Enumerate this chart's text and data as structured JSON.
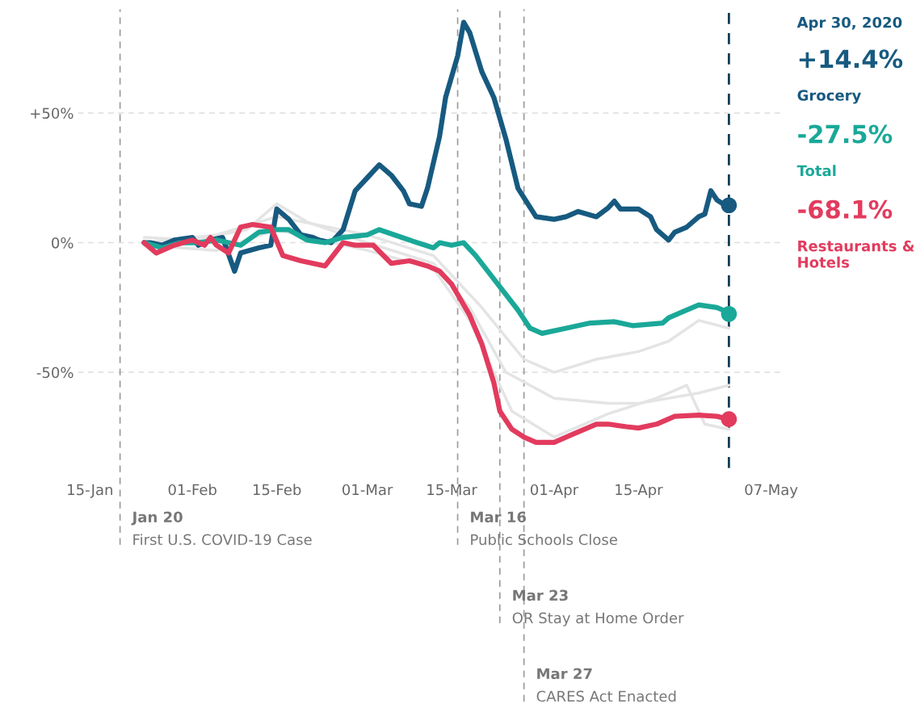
{
  "chart_data": {
    "type": "line",
    "xlim": [
      "2020-01-13",
      "2020-05-09"
    ],
    "xticks": [
      {
        "value": "2020-01-15",
        "label": "15-Jan"
      },
      {
        "value": "2020-02-01",
        "label": "01-Feb"
      },
      {
        "value": "2020-02-15",
        "label": "15-Feb"
      },
      {
        "value": "2020-03-01",
        "label": "01-Mar"
      },
      {
        "value": "2020-03-15",
        "label": "15-Mar"
      },
      {
        "value": "2020-04-01",
        "label": "01-Apr"
      },
      {
        "value": "2020-04-15",
        "label": "15-Apr"
      },
      {
        "value": "2020-05-07",
        "label": "07-May"
      }
    ],
    "ylim": [
      -87,
      90
    ],
    "yticks": [
      {
        "value": 50,
        "label": "+50%"
      },
      {
        "value": 0,
        "label": "0%"
      },
      {
        "value": -50,
        "label": "-50%"
      }
    ],
    "grid": "y",
    "annotations": [
      "Apr 30, 2020",
      "+14.4%",
      "-27.5%",
      "-68.1%"
    ],
    "ref_lines": [
      {
        "axis": "x",
        "value": "2020-01-20",
        "label": "Jan 20\nFirst U.S. COVID-19 Case",
        "color": "#9a9a9a",
        "line_style": "dashed"
      },
      {
        "axis": "x",
        "value": "2020-03-16",
        "label": "Mar 16\nPublic Schools Close",
        "color": "#9a9a9a",
        "line_style": "dashed"
      },
      {
        "axis": "x",
        "value": "2020-03-23",
        "label": "Mar 23\nOR Stay at Home Order",
        "color": "#9a9a9a",
        "line_style": "dashed"
      },
      {
        "axis": "x",
        "value": "2020-03-27",
        "label": "Mar 27\nCARES Act Enacted",
        "color": "#9a9a9a",
        "line_style": "dashed"
      },
      {
        "axis": "x",
        "value": "2020-04-30",
        "color": "#143d55",
        "line_style": "dashed"
      }
    ],
    "series": [
      {
        "color": "#e4e4e4",
        "x": [
          "2020-01-24",
          "2020-02-05",
          "2020-02-15",
          "2020-03-01",
          "2020-03-12",
          "2020-03-20",
          "2020-03-27",
          "2020-04-01",
          "2020-04-08",
          "2020-04-15",
          "2020-04-20",
          "2020-04-25",
          "2020-04-30"
        ],
        "values": [
          0,
          3,
          10,
          3,
          -5,
          -25,
          -45,
          -50,
          -45,
          -42,
          -38,
          -30,
          -33
        ]
      },
      {
        "color": "#e4e4e4",
        "x": [
          "2020-01-24",
          "2020-02-01",
          "2020-02-10",
          "2020-02-15",
          "2020-02-20",
          "2020-03-01",
          "2020-03-12",
          "2020-03-18",
          "2020-03-24",
          "2020-04-01",
          "2020-04-10",
          "2020-04-15",
          "2020-04-25",
          "2020-04-30"
        ],
        "values": [
          2,
          1,
          5,
          15,
          8,
          0,
          -8,
          -25,
          -50,
          -60,
          -62,
          -62,
          -58,
          -55
        ]
      },
      {
        "color": "#e4e4e4",
        "x": [
          "2020-01-24",
          "2020-02-05",
          "2020-02-15",
          "2020-03-01",
          "2020-03-12",
          "2020-03-18",
          "2020-03-25",
          "2020-04-01",
          "2020-04-10",
          "2020-04-18",
          "2020-04-23",
          "2020-04-26",
          "2020-04-30"
        ],
        "values": [
          -1,
          -3,
          5,
          -3,
          -10,
          -30,
          -65,
          -75,
          -66,
          -60,
          -55,
          -70,
          -72
        ]
      },
      {
        "name": "Grocery",
        "color": "#175a80",
        "x": [
          "2020-01-24",
          "2020-01-25",
          "2020-01-27",
          "2020-01-29",
          "2020-02-01",
          "2020-02-02",
          "2020-02-04",
          "2020-02-06",
          "2020-02-08",
          "2020-02-09",
          "2020-02-12",
          "2020-02-14",
          "2020-02-15",
          "2020-02-17",
          "2020-02-19",
          "2020-02-21",
          "2020-02-22",
          "2020-02-24",
          "2020-02-26",
          "2020-02-28",
          "2020-03-01",
          "2020-03-03",
          "2020-03-05",
          "2020-03-07",
          "2020-03-08",
          "2020-03-10",
          "2020-03-11",
          "2020-03-13",
          "2020-03-14",
          "2020-03-16",
          "2020-03-17",
          "2020-03-18",
          "2020-03-20",
          "2020-03-22",
          "2020-03-24",
          "2020-03-26",
          "2020-03-29",
          "2020-04-01",
          "2020-04-03",
          "2020-04-05",
          "2020-04-08",
          "2020-04-10",
          "2020-04-11",
          "2020-04-12",
          "2020-04-15",
          "2020-04-17",
          "2020-04-18",
          "2020-04-20",
          "2020-04-21",
          "2020-04-23",
          "2020-04-25",
          "2020-04-26",
          "2020-04-27",
          "2020-04-28",
          "2020-04-29",
          "2020-04-30"
        ],
        "values": [
          0,
          0,
          -1,
          1,
          2,
          -1,
          1,
          2,
          -11,
          -4,
          -2,
          -1,
          13,
          9,
          3,
          2,
          1,
          0,
          5,
          20,
          25,
          30,
          26,
          20,
          15,
          14,
          21,
          41,
          56,
          72,
          85,
          81,
          66,
          56,
          40,
          21,
          10,
          9,
          10,
          12,
          10,
          13.5,
          16,
          13,
          13,
          10,
          5,
          1,
          4,
          6,
          10,
          11,
          20,
          16.5,
          15,
          14.4
        ]
      },
      {
        "name": "Total",
        "color": "#1aa898",
        "x": [
          "2020-01-24",
          "2020-01-27",
          "2020-01-30",
          "2020-02-02",
          "2020-02-05",
          "2020-02-09",
          "2020-02-12",
          "2020-02-15",
          "2020-02-17",
          "2020-02-20",
          "2020-02-23",
          "2020-02-26",
          "2020-03-01",
          "2020-03-03",
          "2020-03-08",
          "2020-03-12",
          "2020-03-13",
          "2020-03-15",
          "2020-03-17",
          "2020-03-19",
          "2020-03-21",
          "2020-03-23",
          "2020-03-26",
          "2020-03-28",
          "2020-03-30",
          "2020-04-03",
          "2020-04-07",
          "2020-04-11",
          "2020-04-14",
          "2020-04-19",
          "2020-04-20",
          "2020-04-22",
          "2020-04-25",
          "2020-04-28",
          "2020-04-29",
          "2020-04-30"
        ],
        "values": [
          0,
          -2,
          0,
          0,
          1,
          -1,
          4,
          5,
          5,
          1,
          0,
          2,
          3,
          5,
          1,
          -2,
          0,
          -1,
          0,
          -5,
          -11,
          -17,
          -26,
          -33,
          -35,
          -33,
          -31,
          -30.5,
          -32,
          -31,
          -29,
          -27,
          -24,
          -25,
          -26,
          -27.5
        ]
      },
      {
        "name": "Restaurants & Hotels",
        "color": "#e23b5e",
        "x": [
          "2020-01-24",
          "2020-01-26",
          "2020-01-29",
          "2020-02-01",
          "2020-02-03",
          "2020-02-04",
          "2020-02-05",
          "2020-02-07",
          "2020-02-09",
          "2020-02-11",
          "2020-02-14",
          "2020-02-16",
          "2020-02-19",
          "2020-02-23",
          "2020-02-26",
          "2020-02-28",
          "2020-03-02",
          "2020-03-05",
          "2020-03-08",
          "2020-03-11",
          "2020-03-13",
          "2020-03-15",
          "2020-03-16",
          "2020-03-18",
          "2020-03-20",
          "2020-03-22",
          "2020-03-23",
          "2020-03-25",
          "2020-03-27",
          "2020-03-29",
          "2020-04-01",
          "2020-04-04",
          "2020-04-08",
          "2020-04-10",
          "2020-04-13",
          "2020-04-15",
          "2020-04-18",
          "2020-04-21",
          "2020-04-25",
          "2020-04-28",
          "2020-04-30"
        ],
        "values": [
          0,
          -4,
          -1,
          1,
          -1,
          2,
          -1,
          -4,
          6,
          7,
          6,
          -5,
          -7,
          -9,
          0,
          -1,
          -1,
          -8,
          -7,
          -9,
          -11,
          -16,
          -20,
          -28,
          -39,
          -54,
          -65,
          -72,
          -75,
          -77,
          -77,
          -74,
          -70,
          -70,
          -71,
          -71.5,
          -70,
          -67,
          -66.5,
          -67,
          -68.1
        ]
      },
      {
        "type": "scatter",
        "marker": "circle",
        "color": "#175a80",
        "x": [
          "2020-04-30"
        ],
        "values": [
          14.4
        ]
      },
      {
        "type": "scatter",
        "marker": "circle",
        "color": "#1aa898",
        "x": [
          "2020-04-30"
        ],
        "values": [
          -27.5
        ]
      },
      {
        "type": "scatter",
        "marker": "circle",
        "color": "#e23b5e",
        "x": [
          "2020-04-30"
        ],
        "values": [
          -68.1
        ]
      }
    ]
  }
}
